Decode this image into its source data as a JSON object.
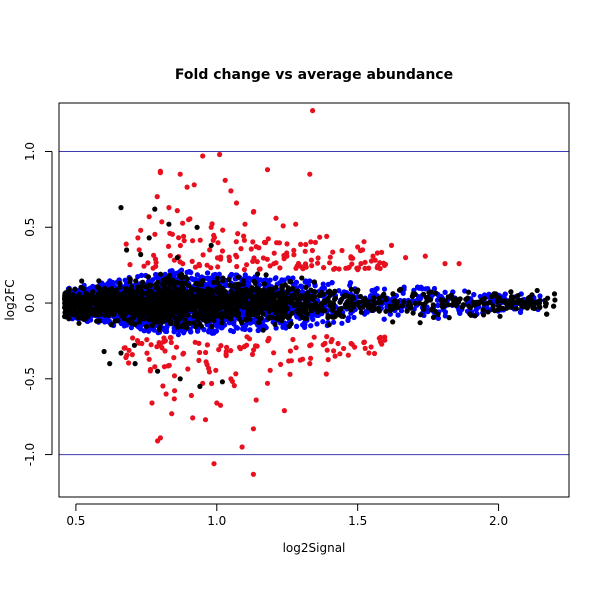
{
  "chart_data": {
    "type": "scatter",
    "title": "Fold change vs average abundance",
    "xlabel": "log2Signal",
    "ylabel": "log2FC",
    "xlim": [
      0.44,
      2.25
    ],
    "ylim": [
      -1.28,
      1.32
    ],
    "x_ticks": [
      0.5,
      1.0,
      1.5,
      2.0
    ],
    "x_tick_labels": [
      "0.5",
      "1.0",
      "1.5",
      "2.0"
    ],
    "y_ticks": [
      -1.0,
      -0.5,
      0.0,
      0.5,
      1.0
    ],
    "y_tick_labels": [
      "-1.0",
      "-0.5",
      "0.0",
      "0.5",
      "1.0"
    ],
    "reference_lines": {
      "y": [
        1.0,
        -1.0
      ],
      "color": "#3b3bb0"
    },
    "grid": false,
    "legend": "none",
    "colors": {
      "black": "#000000",
      "blue": "#0000ff",
      "red": "#e8101f"
    },
    "series": [
      {
        "color": "red",
        "points": [
          [
            1.34,
            1.27
          ],
          [
            0.95,
            0.97
          ],
          [
            1.01,
            0.98
          ],
          [
            0.8,
            0.87
          ],
          [
            0.8,
            0.86
          ],
          [
            0.87,
            0.85
          ],
          [
            1.33,
            0.85
          ],
          [
            1.18,
            0.88
          ],
          [
            1.03,
            0.81
          ],
          [
            0.92,
            0.78
          ],
          [
            1.05,
            0.74
          ],
          [
            1.07,
            0.66
          ],
          [
            0.83,
            0.63
          ],
          [
            0.86,
            0.61
          ],
          [
            1.13,
            0.6
          ],
          [
            0.76,
            0.57
          ],
          [
            0.9,
            0.55
          ],
          [
            1.21,
            0.56
          ],
          [
            0.98,
            0.5
          ],
          [
            1.1,
            0.52
          ],
          [
            1.28,
            0.52
          ],
          [
            0.73,
            0.48
          ],
          [
            1.39,
            0.44
          ],
          [
            1.35,
            0.4
          ],
          [
            0.72,
            0.43
          ],
          [
            1.5,
            0.37
          ],
          [
            1.62,
            0.38
          ],
          [
            1.57,
            0.33
          ],
          [
            1.67,
            0.3
          ],
          [
            1.74,
            0.31
          ],
          [
            1.81,
            0.26
          ],
          [
            1.86,
            0.26
          ],
          [
            0.78,
            -0.42
          ],
          [
            0.85,
            -0.48
          ],
          [
            0.95,
            -0.53
          ],
          [
            1.05,
            -0.5
          ],
          [
            0.82,
            -0.6
          ],
          [
            0.91,
            -0.61
          ],
          [
            1.0,
            -0.66
          ],
          [
            1.14,
            -0.64
          ],
          [
            0.77,
            -0.66
          ],
          [
            1.18,
            -0.53
          ],
          [
            1.26,
            -0.47
          ],
          [
            1.24,
            -0.71
          ],
          [
            0.84,
            -0.73
          ],
          [
            0.96,
            -0.77
          ],
          [
            1.13,
            -0.83
          ],
          [
            0.8,
            -0.89
          ],
          [
            0.79,
            -0.91
          ],
          [
            1.09,
            -0.95
          ],
          [
            0.99,
            -1.06
          ],
          [
            1.13,
            -1.13
          ],
          [
            1.33,
            -0.4
          ],
          [
            1.42,
            -0.35
          ],
          [
            1.54,
            -0.33
          ],
          [
            0.7,
            -0.34
          ],
          [
            1.45,
            -0.3
          ]
        ]
      },
      {
        "color": "black",
        "points": [
          [
            0.66,
            0.63
          ],
          [
            0.78,
            0.62
          ],
          [
            0.83,
            0.52
          ],
          [
            0.76,
            0.43
          ],
          [
            0.68,
            0.35
          ],
          [
            0.73,
            0.32
          ],
          [
            0.93,
            0.5
          ],
          [
            0.98,
            0.38
          ],
          [
            0.86,
            0.3
          ],
          [
            0.62,
            -0.4
          ],
          [
            0.66,
            -0.33
          ],
          [
            0.71,
            -0.4
          ],
          [
            0.79,
            -0.45
          ],
          [
            0.87,
            -0.5
          ],
          [
            0.94,
            -0.55
          ],
          [
            1.02,
            -0.52
          ],
          [
            0.6,
            -0.32
          ],
          [
            2.2,
            0.02
          ],
          [
            2.1,
            0.01
          ],
          [
            2.14,
            0.0
          ],
          [
            2.05,
            0.04
          ],
          [
            2.0,
            -0.02
          ],
          [
            1.95,
            0.03
          ],
          [
            1.9,
            -0.03
          ],
          [
            0.48,
            -0.03
          ],
          [
            0.47,
            0.02
          ],
          [
            0.5,
            -0.08
          ],
          [
            0.52,
            -0.1
          ]
        ]
      }
    ],
    "clouds": [
      {
        "color": "blue",
        "count": 3200,
        "x_range": [
          0.47,
          2.15
        ],
        "spread_max": 0.22,
        "peak_x": 0.85
      },
      {
        "color": "black",
        "count": 2400,
        "x_range": [
          0.46,
          2.2
        ],
        "spread_max": 0.06,
        "peak_x": 0.85
      },
      {
        "color": "red",
        "count": 260,
        "x_range": [
          0.67,
          1.6
        ],
        "spread_max": 0.35,
        "peak_x": 0.9,
        "min_abs": 0.22
      }
    ]
  }
}
